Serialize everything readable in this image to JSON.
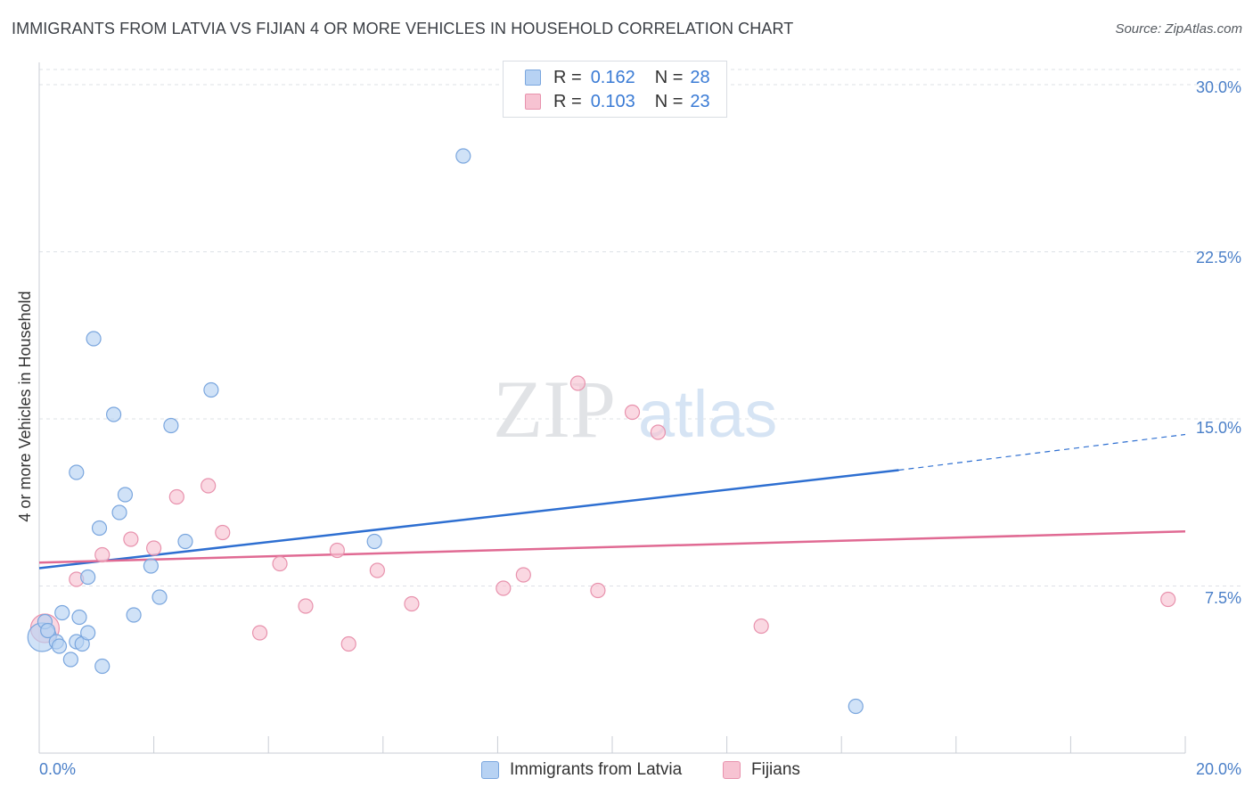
{
  "title": "IMMIGRANTS FROM LATVIA VS FIJIAN 4 OR MORE VEHICLES IN HOUSEHOLD CORRELATION CHART",
  "source": "Source: ZipAtlas.com",
  "watermark": {
    "zip": "ZIP",
    "atlas": "atlas"
  },
  "legend": {
    "r_label": "R =",
    "n_label": "N =",
    "entries": [
      {
        "r": "0.162",
        "n": "28"
      },
      {
        "r": "0.103",
        "n": "23"
      }
    ]
  },
  "colors": {
    "blue_fill": "#b7d2f3",
    "blue_stroke": "#7aa6de",
    "blue_line": "#2e6fd1",
    "pink_fill": "#f7c3d2",
    "pink_stroke": "#e892ad",
    "pink_line": "#e06a93",
    "tick_text": "#4a7fc8",
    "grid": "#dde1e6"
  },
  "chart_data": {
    "type": "scatter",
    "title": "IMMIGRANTS FROM LATVIA VS FIJIAN 4 OR MORE VEHICLES IN HOUSEHOLD CORRELATION CHART",
    "xlabel": "",
    "ylabel": "4 or more Vehicles in Household",
    "xlim": [
      0,
      20
    ],
    "ylim": [
      0,
      31
    ],
    "x_tick_labels": [
      "0.0%",
      "20.0%"
    ],
    "y_ticks": [
      7.5,
      15.0,
      22.5,
      30.0
    ],
    "y_tick_labels": [
      "7.5%",
      "15.0%",
      "22.5%",
      "30.0%"
    ],
    "grid": true,
    "legend_position": "top-center",
    "series": [
      {
        "name": "Immigrants from Latvia",
        "r": 0.162,
        "n": 28,
        "points": [
          {
            "x": 0.05,
            "y": 5.2,
            "size": "large"
          },
          {
            "x": 0.1,
            "y": 5.9
          },
          {
            "x": 0.15,
            "y": 5.5
          },
          {
            "x": 0.3,
            "y": 5.0
          },
          {
            "x": 0.35,
            "y": 4.8
          },
          {
            "x": 0.4,
            "y": 6.3
          },
          {
            "x": 0.55,
            "y": 4.2
          },
          {
            "x": 0.65,
            "y": 5.0
          },
          {
            "x": 0.7,
            "y": 6.1
          },
          {
            "x": 0.75,
            "y": 4.9
          },
          {
            "x": 0.85,
            "y": 5.4
          },
          {
            "x": 1.1,
            "y": 3.9
          },
          {
            "x": 0.65,
            "y": 12.6
          },
          {
            "x": 0.85,
            "y": 7.9
          },
          {
            "x": 0.95,
            "y": 18.6
          },
          {
            "x": 1.05,
            "y": 10.1
          },
          {
            "x": 1.3,
            "y": 15.2
          },
          {
            "x": 1.4,
            "y": 10.8
          },
          {
            "x": 1.5,
            "y": 11.6
          },
          {
            "x": 1.65,
            "y": 6.2
          },
          {
            "x": 1.95,
            "y": 8.4
          },
          {
            "x": 2.1,
            "y": 7.0
          },
          {
            "x": 2.3,
            "y": 14.7
          },
          {
            "x": 2.55,
            "y": 9.5
          },
          {
            "x": 3.0,
            "y": 16.3
          },
          {
            "x": 5.85,
            "y": 9.5
          },
          {
            "x": 7.4,
            "y": 26.8
          },
          {
            "x": 14.25,
            "y": 2.1
          }
        ],
        "trend": {
          "x0": 0,
          "y0": 8.3,
          "x1": 15.0,
          "y1": 12.7,
          "x_dash_end": 20.0,
          "y_dash_end": 14.3
        }
      },
      {
        "name": "Fijians",
        "r": 0.103,
        "n": 23,
        "points": [
          {
            "x": 0.1,
            "y": 5.6,
            "size": "large"
          },
          {
            "x": 0.65,
            "y": 7.8
          },
          {
            "x": 1.1,
            "y": 8.9
          },
          {
            "x": 1.6,
            "y": 9.6
          },
          {
            "x": 2.0,
            "y": 9.2
          },
          {
            "x": 2.4,
            "y": 11.5
          },
          {
            "x": 2.95,
            "y": 12.0
          },
          {
            "x": 3.2,
            "y": 9.9
          },
          {
            "x": 3.85,
            "y": 5.4
          },
          {
            "x": 4.2,
            "y": 8.5
          },
          {
            "x": 4.65,
            "y": 6.6
          },
          {
            "x": 5.2,
            "y": 9.1
          },
          {
            "x": 5.4,
            "y": 4.9
          },
          {
            "x": 5.9,
            "y": 8.2
          },
          {
            "x": 6.5,
            "y": 6.7
          },
          {
            "x": 8.1,
            "y": 7.4
          },
          {
            "x": 8.45,
            "y": 8.0
          },
          {
            "x": 9.4,
            "y": 16.6
          },
          {
            "x": 9.75,
            "y": 7.3
          },
          {
            "x": 10.35,
            "y": 15.3
          },
          {
            "x": 10.8,
            "y": 14.4
          },
          {
            "x": 12.6,
            "y": 5.7
          },
          {
            "x": 19.7,
            "y": 6.9
          }
        ],
        "trend": {
          "x0": 0,
          "y0": 8.55,
          "x1": 20.0,
          "y1": 9.95
        }
      }
    ]
  }
}
